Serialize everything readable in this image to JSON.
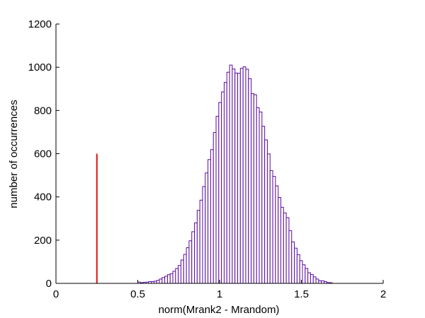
{
  "chart_data": {
    "type": "bar",
    "title": "",
    "xlabel": "norm(Mrank2 - Mrandom)",
    "ylabel": "number of occurrences",
    "xlim": [
      0,
      2
    ],
    "ylim": [
      0,
      1200
    ],
    "xticks": [
      0,
      0.5,
      1,
      1.5,
      2
    ],
    "yticks": [
      0,
      200,
      400,
      600,
      800,
      1000,
      1200
    ],
    "grid": false,
    "legend": "none",
    "colors": {
      "bar_edge": "#5b0aa0",
      "bar_fill": "#ffffff",
      "marker_line": "#e01010",
      "axis": "#000000"
    },
    "histogram": {
      "bin_start": 0.5,
      "bin_width": 0.0165,
      "counts": [
        6,
        3,
        5,
        6,
        8,
        8,
        10,
        14,
        20,
        27,
        33,
        40,
        45,
        56,
        69,
        83,
        108,
        134,
        165,
        197,
        239,
        280,
        338,
        385,
        448,
        511,
        573,
        619,
        698,
        773,
        837,
        886,
        930,
        977,
        1010,
        992,
        973,
        972,
        995,
        1002,
        991,
        947,
        878,
        873,
        813,
        793,
        727,
        664,
        599,
        522,
        495,
        451,
        397,
        352,
        326,
        304,
        244,
        192,
        163,
        133,
        105,
        86,
        69,
        49,
        41,
        30,
        20,
        12,
        12,
        8,
        4,
        3
      ]
    },
    "reference_line": {
      "x": 0.25,
      "y_from": 0,
      "y_to": 600
    }
  }
}
